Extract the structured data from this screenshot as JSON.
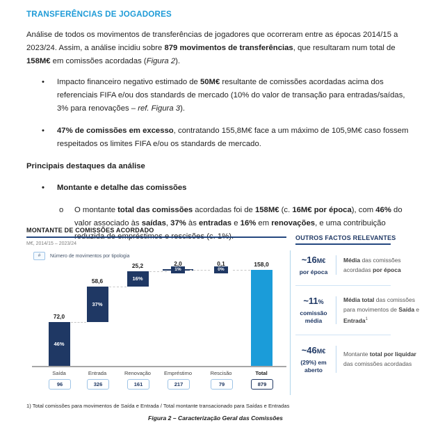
{
  "markers": {
    "l1": "•",
    "l2": "o"
  },
  "doc": {
    "title": "TRANSFERÊNCIAS DE JOGADORES",
    "intro": [
      {
        "t": "Análise de todos os movimentos de transferências de jogadores que ocorreram entre as épocas 2014/15 a 2023/24. Assim, a análise incidiu sobre "
      },
      {
        "t": "879 movimentos de transferências",
        "b": true
      },
      {
        "t": ", que resultaram num total de "
      },
      {
        "t": "158M€",
        "b": true
      },
      {
        "t": " em comissões acordadas ("
      },
      {
        "t": "Figura 2",
        "i": true
      },
      {
        "t": ")."
      }
    ],
    "bullet1": [
      {
        "t": "Impacto financeiro negativo estimado de "
      },
      {
        "t": "50M€",
        "b": true
      },
      {
        "t": " resultante de comissões acordadas acima dos referenciais FIFA e/ou dos standards de mercado (10% do valor de transação para entradas/saídas, 3% para renovações – "
      },
      {
        "t": "ref. Figura 3",
        "i": true
      },
      {
        "t": ")."
      }
    ],
    "bullet2": [
      {
        "t": "47% de comissões em excesso",
        "b": true
      },
      {
        "t": ", contratando 155,8M€ face a um máximo de 105,9M€ caso fossem respeitados os limites FIFA e/ou os standards de mercado."
      }
    ],
    "destaques_heading": "Principais destaques da análise",
    "bullet_montante": "Montante e detalhe das comissões",
    "sub_bullet": [
      {
        "t": "O montante "
      },
      {
        "t": "total das comissões",
        "b": true
      },
      {
        "t": " acordadas foi de "
      },
      {
        "t": "158M€",
        "b": true
      },
      {
        "t": " (c. "
      },
      {
        "t": "16M€ por época",
        "b": true
      },
      {
        "t": "), com "
      },
      {
        "t": "46%",
        "b": true
      },
      {
        "t": " do valor associado às "
      },
      {
        "t": "saídas",
        "b": true
      },
      {
        "t": ", "
      },
      {
        "t": "37%",
        "b": true
      },
      {
        "t": " às "
      },
      {
        "t": "entradas",
        "b": true
      },
      {
        "t": " e "
      },
      {
        "t": "16%",
        "b": true
      },
      {
        "t": " em "
      },
      {
        "t": "renovações",
        "b": true
      },
      {
        "t": ", e uma contribuição reduzida de empréstimos e rescisões (c. 1%)."
      }
    ],
    "footnote": "1) Total comissões para movimentos de Saída e Entrada / Total montante transacionado para Saídas e Entradas",
    "caption": "Figura 2 – Caracterização Geral das Comissões"
  },
  "chart_data": {
    "type": "waterfall-bar",
    "title": "MONTANTE DE COMISSÕES ACORDADO",
    "subtitle": "M€, 2014/15 – 2023/24",
    "legend_symbol": "#",
    "legend_label": "Número de movimentos por tipologia",
    "categories": [
      "Saída",
      "Entrada",
      "Renovação",
      "Empréstimo",
      "Rescisão",
      "Total"
    ],
    "values": [
      72.0,
      58.6,
      25.2,
      2.0,
      0.1,
      158.0
    ],
    "value_labels": [
      "72,0",
      "58,6",
      "25,2",
      "2,0",
      "0,1",
      "158,0"
    ],
    "pct_labels": [
      "46%",
      "37%",
      "16%",
      "1%",
      "0%",
      ""
    ],
    "counts": [
      "96",
      "326",
      "161",
      "217",
      "79",
      "879"
    ],
    "is_total": [
      false,
      false,
      false,
      false,
      false,
      true
    ],
    "whisker": [
      false,
      false,
      false,
      true,
      false,
      false
    ],
    "ylim": [
      0,
      158
    ],
    "bar_color": "#1F3864",
    "total_color": "#1B9CD9",
    "grid": false,
    "legend_position": "top-left"
  },
  "sidebar": {
    "title": "OUTROS FACTOS RELEVANTES",
    "items": [
      {
        "value_main": "~16",
        "value_unit": "M€",
        "sub": "por época",
        "desc": [
          {
            "t": "Média",
            "b": true
          },
          {
            "t": " das comissões acordadas "
          },
          {
            "t": "por época",
            "b": true
          }
        ]
      },
      {
        "value_main": "~11",
        "value_unit": "%",
        "sub": "comissão\nmédia",
        "desc": [
          {
            "t": "Média total",
            "b": true
          },
          {
            "t": " das comissões para movimentos de "
          },
          {
            "t": "Saída",
            "b": true
          },
          {
            "t": " e "
          },
          {
            "t": "Entrada",
            "b": true
          },
          {
            "t": "1",
            "sup": true
          }
        ]
      },
      {
        "value_main": "~46",
        "value_unit": "M€",
        "sub": "(29%) em\naberto",
        "desc": [
          {
            "t": "Montante "
          },
          {
            "t": "total por liquidar",
            "b": true
          },
          {
            "t": " das comissões acordadas"
          }
        ]
      }
    ]
  },
  "colors": {
    "accent_blue": "#1E9BD7",
    "navy": "#1F3864",
    "light_blue_border": "#9DC3E6",
    "gray_text": "#595959"
  }
}
